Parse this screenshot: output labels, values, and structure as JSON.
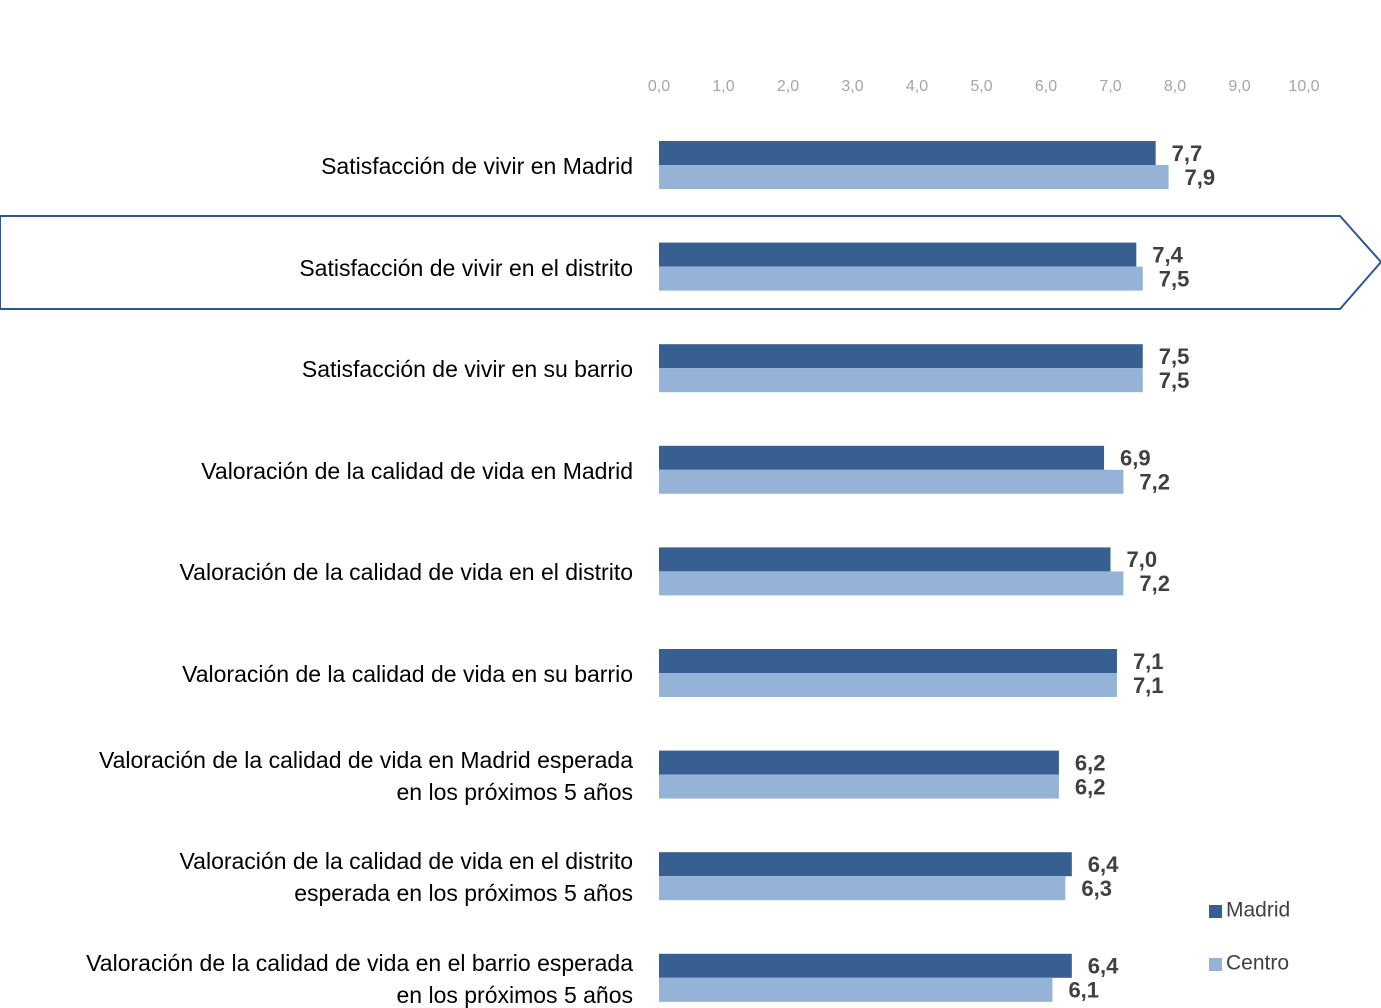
{
  "chart_data": {
    "type": "bar",
    "orientation": "horizontal",
    "categories": [
      "Satisfacción de vivir en Madrid",
      "Satisfacción de vivir en el distrito",
      "Satisfacción de vivir en su barrio",
      "Valoración de la calidad de vida en Madrid",
      "Valoración de la calidad de vida en el distrito",
      "Valoración de la calidad de vida en su barrio",
      "Valoración de la calidad de vida en Madrid esperada\nen los próximos 5 años",
      "Valoración de la calidad de vida en el distrito\nesperada en los próximos 5 años",
      "Valoración de la calidad de vida en el barrio esperada\nen los próximos 5 años"
    ],
    "series": [
      {
        "name": "Madrid",
        "color": "#375f91",
        "values": [
          7.7,
          7.4,
          7.5,
          6.9,
          7.0,
          7.1,
          6.2,
          6.4,
          6.4
        ],
        "value_labels": [
          "7,7",
          "7,4",
          "7,5",
          "6,9",
          "7,0",
          "7,1",
          "6,2",
          "6,4",
          "6,4"
        ]
      },
      {
        "name": "Centro",
        "color": "#95b3d7",
        "values": [
          7.9,
          7.5,
          7.5,
          7.2,
          7.2,
          7.1,
          6.2,
          6.3,
          6.1
        ],
        "value_labels": [
          "7,9",
          "7,5",
          "7,5",
          "7,2",
          "7,2",
          "7,1",
          "6,2",
          "6,3",
          "6,1"
        ]
      }
    ],
    "xlim": [
      0,
      10
    ],
    "xticks": [
      {
        "value": 0,
        "label": "0,0"
      },
      {
        "value": 1,
        "label": "1,0"
      },
      {
        "value": 2,
        "label": "2,0"
      },
      {
        "value": 3,
        "label": "3,0"
      },
      {
        "value": 4,
        "label": "4,0"
      },
      {
        "value": 5,
        "label": "5,0"
      },
      {
        "value": 6,
        "label": "6,0"
      },
      {
        "value": 7,
        "label": "7,0"
      },
      {
        "value": 8,
        "label": "8,0"
      },
      {
        "value": 9,
        "label": "9,0"
      },
      {
        "value": 10,
        "label": "10,0"
      }
    ],
    "grid": false,
    "legend": "lower right"
  }
}
